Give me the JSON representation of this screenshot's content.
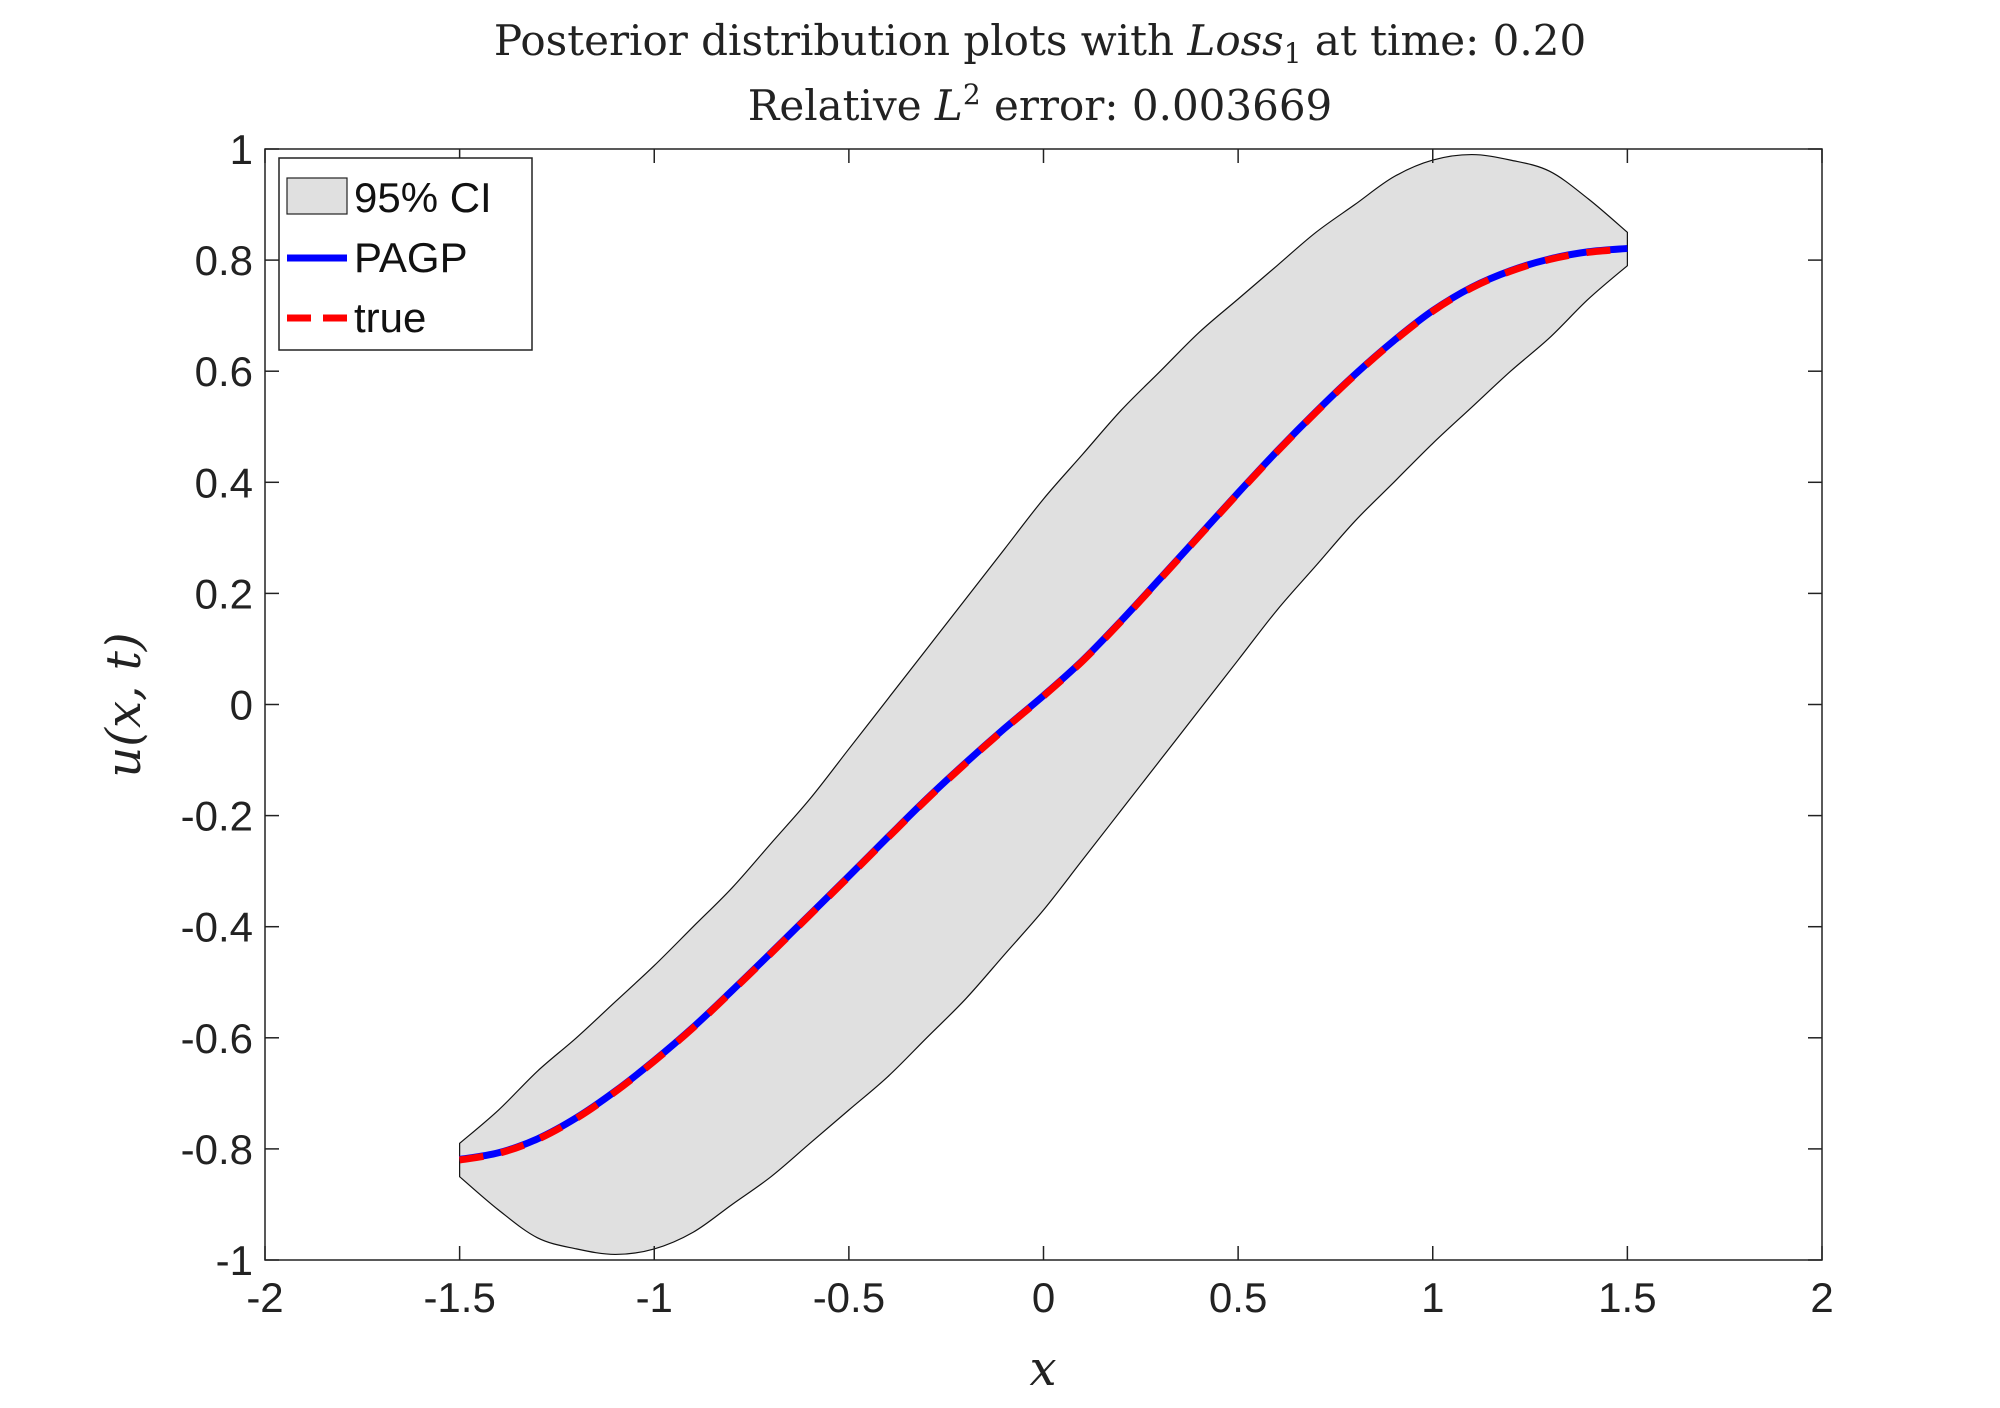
{
  "chart_data": {
    "type": "line",
    "title_line1_prefix": "Posterior distribution plots with ",
    "title_loss_var": "Loss",
    "title_loss_sub": "1",
    "title_line1_suffix": " at time: 0.20",
    "title_line2_prefix": "Relative ",
    "title_l2_var": "L",
    "title_l2_sup": "2",
    "title_line2_suffix": " error: 0.003669",
    "xlabel": "x",
    "ylabel": "u(x, t)",
    "xlim": [
      -2,
      2
    ],
    "ylim": [
      -1,
      1
    ],
    "xticks": [
      -2,
      -1.5,
      -1,
      -0.5,
      0,
      0.5,
      1,
      1.5,
      2
    ],
    "xtick_labels": [
      "-2",
      "-1.5",
      "-1",
      "-0.5",
      "0",
      "0.5",
      "1",
      "1.5",
      "2"
    ],
    "yticks": [
      -1,
      -0.8,
      -0.6,
      -0.4,
      -0.2,
      0,
      0.2,
      0.4,
      0.6,
      0.8,
      1
    ],
    "ytick_labels": [
      "-1",
      "-0.8",
      "-0.6",
      "-0.4",
      "-0.2",
      "0",
      "0.2",
      "0.4",
      "0.6",
      "0.8",
      "1"
    ],
    "grid": false,
    "legend": {
      "position": "top-left",
      "entries": [
        "95% CI",
        "PAGP",
        "true"
      ]
    },
    "x": [
      -1.5,
      -1.4,
      -1.3,
      -1.2,
      -1.1,
      -1.0,
      -0.9,
      -0.8,
      -0.7,
      -0.6,
      -0.5,
      -0.4,
      -0.3,
      -0.2,
      -0.1,
      0.0,
      0.1,
      0.2,
      0.3,
      0.4,
      0.5,
      0.6,
      0.7,
      0.8,
      0.9,
      1.0,
      1.1,
      1.2,
      1.3,
      1.4,
      1.5
    ],
    "series": [
      {
        "name": "true",
        "color": "#ff0000",
        "style": "dashed",
        "values": [
          -0.82,
          -0.808,
          -0.783,
          -0.745,
          -0.697,
          -0.642,
          -0.582,
          -0.516,
          -0.448,
          -0.379,
          -0.31,
          -0.24,
          -0.171,
          -0.106,
          -0.044,
          0.015,
          0.078,
          0.15,
          0.226,
          0.303,
          0.38,
          0.455,
          0.526,
          0.593,
          0.654,
          0.708,
          0.75,
          0.78,
          0.801,
          0.814,
          0.82
        ]
      },
      {
        "name": "PAGP",
        "color": "#0000ff",
        "style": "solid",
        "values": [
          -0.819,
          -0.807,
          -0.782,
          -0.744,
          -0.696,
          -0.641,
          -0.581,
          -0.515,
          -0.447,
          -0.378,
          -0.309,
          -0.239,
          -0.17,
          -0.105,
          -0.043,
          0.016,
          0.079,
          0.151,
          0.227,
          0.304,
          0.381,
          0.456,
          0.527,
          0.594,
          0.655,
          0.709,
          0.751,
          0.781,
          0.802,
          0.815,
          0.821
        ]
      }
    ],
    "ci": {
      "name": "95% CI",
      "color": "#e0e0e0",
      "upper": [
        -0.79,
        -0.73,
        -0.66,
        -0.6,
        -0.535,
        -0.47,
        -0.4,
        -0.33,
        -0.25,
        -0.17,
        -0.08,
        0.01,
        0.1,
        0.19,
        0.28,
        0.37,
        0.45,
        0.53,
        0.6,
        0.67,
        0.73,
        0.79,
        0.85,
        0.9,
        0.95,
        0.98,
        0.99,
        0.98,
        0.96,
        0.91,
        0.85
      ],
      "lower": [
        -0.85,
        -0.91,
        -0.96,
        -0.98,
        -0.99,
        -0.98,
        -0.95,
        -0.9,
        -0.85,
        -0.79,
        -0.73,
        -0.67,
        -0.6,
        -0.53,
        -0.45,
        -0.37,
        -0.28,
        -0.19,
        -0.1,
        -0.01,
        0.08,
        0.17,
        0.25,
        0.33,
        0.4,
        0.47,
        0.535,
        0.6,
        0.66,
        0.73,
        0.79
      ]
    }
  }
}
